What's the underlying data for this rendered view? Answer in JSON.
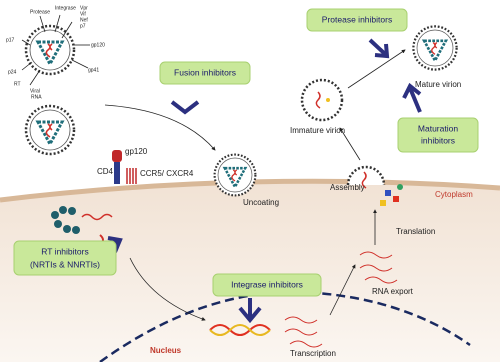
{
  "virion_labels": [
    "Protease",
    "Integrase",
    "Vpr",
    "Vif",
    "Nef",
    "p7",
    "gp120",
    "p17",
    "p24",
    "RT",
    "Viral",
    "RNA",
    "gp41"
  ],
  "inhibitors": {
    "fusion": "Fusion inhibitors",
    "protease": "Protease inhibitors",
    "maturation": [
      "Maturation",
      "inhibitors"
    ],
    "rt": [
      "RT inhibitors",
      "(NRTIs & NNRTIs)"
    ],
    "integrase": "Integrase inhibitors"
  },
  "labels": {
    "gp120": "gp120",
    "cd4": "CD4",
    "coreceptor": "CCR5/ CXCR4",
    "uncoating": "Uncoating",
    "immature": "Immature virion",
    "mature": "Mature virion",
    "assembly": "Assembly",
    "cytoplasm": "Cytoplasm",
    "translation": "Translation",
    "rna_export": "RNA export",
    "nucleus": "Nucleus",
    "transcription": "Transcription"
  }
}
